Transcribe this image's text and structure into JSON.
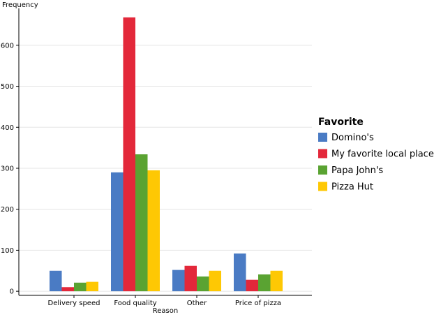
{
  "chart_data": {
    "type": "bar",
    "xlabel": "Reason",
    "ylabel": "Frequency",
    "categories": [
      "Delivery speed",
      "Food quality",
      "Other",
      "Price of pizza"
    ],
    "ylim": [
      -10,
      690
    ],
    "yticks": [
      0,
      100,
      200,
      300,
      400,
      500,
      600
    ],
    "grid": "horizontal",
    "legend": {
      "title": "Favorite",
      "placement": "right"
    },
    "series": [
      {
        "name": "Domino's",
        "color": "#4a7bc4",
        "values": [
          50,
          290,
          52,
          92
        ]
      },
      {
        "name": "My favorite local place",
        "color": "#e3283a",
        "values": [
          10,
          668,
          62,
          28
        ]
      },
      {
        "name": "Papa John's",
        "color": "#5aa332",
        "values": [
          21,
          334,
          36,
          41
        ]
      },
      {
        "name": "Pizza Hut",
        "color": "#fec804",
        "values": [
          23,
          295,
          50,
          50
        ]
      }
    ]
  }
}
